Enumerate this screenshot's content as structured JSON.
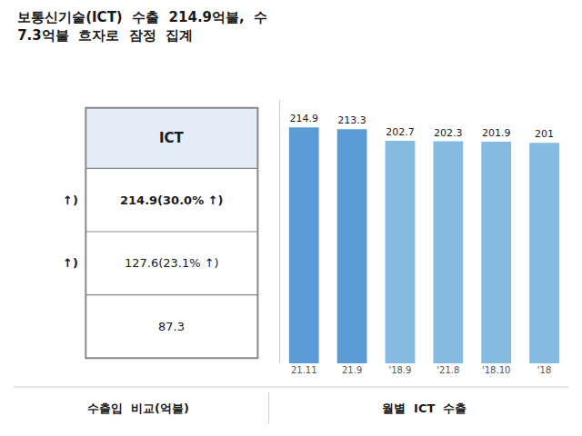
{
  "chart_data": {
    "type": "bar",
    "title": "보통신기술(ICT)  수출  214.9억불,  수",
    "subtitle": "7.3억불  흐자로  잠정  집계",
    "categories": [
      "21.11",
      "21.9",
      "'18.9",
      "'21.8",
      "'18.10",
      "'18"
    ],
    "values": [
      214.9,
      213.3,
      202.7,
      202.3,
      201.9,
      201.0
    ],
    "value_labels": [
      "214.9",
      "213.3",
      "202.7",
      "202.3",
      "201.9",
      "201"
    ],
    "colors": [
      "#5B9BD5",
      "#5B9BD5",
      "#85BBE0",
      "#85BBE0",
      "#85BBE0",
      "#85BBE0"
    ],
    "ylim": [
      0,
      240
    ],
    "data_labels": true,
    "tick_labels": "x",
    "grid": false,
    "annotations": [
      "ICT",
      "↑)",
      "214.9(30.0% ↑)",
      "↑)",
      "127.6(23.1% ↑)",
      "87.3",
      "수출입  비교(억불)",
      "월별  ICT  수출"
    ]
  }
}
